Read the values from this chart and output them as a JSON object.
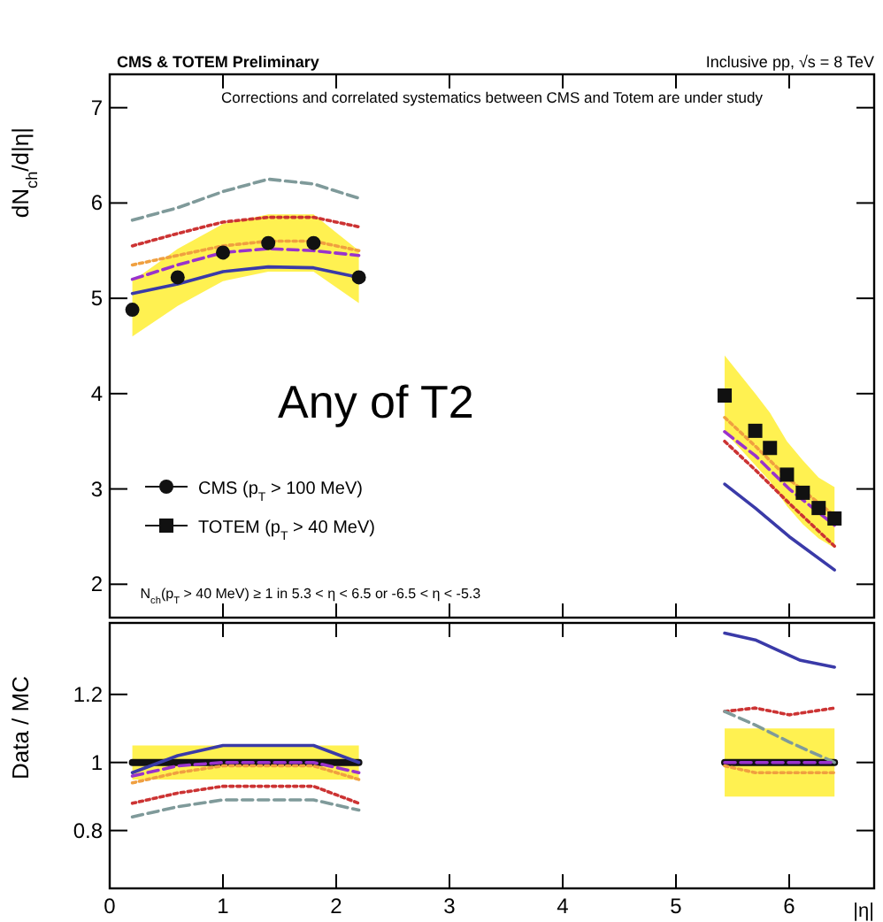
{
  "chart_data": [
    {
      "type": "line",
      "title": "CMS & TOTEM Preliminary",
      "subtitle": "Inclusive pp, √s = 8 TeV",
      "ylabel": "dN$_{ch}$/d|η|",
      "annotations": [
        "Corrections and correlated systematics between CMS and Totem are under study",
        "N$_{ch}$(p$_{T}$ > 40 MeV) ≥ 1 in 5.3 < η < 6.5 or -6.5 < η < -5.3",
        "Any of T2"
      ],
      "xlim": [
        0,
        6.75
      ],
      "ylim": [
        1.65,
        7.35
      ],
      "xticks": [
        0,
        1,
        2,
        3,
        4,
        5,
        6
      ],
      "yticks": [
        2,
        3,
        4,
        5,
        6,
        7
      ],
      "tick_labels": "y",
      "legend": "bottom left",
      "series": [
        {
          "color": "#3a3aa8",
          "line_style": "solid",
          "x": [
            0.2,
            0.6,
            1.0,
            1.4,
            1.8,
            2.2
          ],
          "values": [
            5.05,
            5.15,
            5.28,
            5.33,
            5.32,
            5.22
          ]
        },
        {
          "color": "#3a3aa8",
          "line_style": "solid",
          "x": [
            5.43,
            5.7,
            6.0,
            6.4
          ],
          "values": [
            3.05,
            2.8,
            2.5,
            2.15
          ]
        },
        {
          "color": "#cc3333",
          "line_style": "dotted",
          "x": [
            0.2,
            0.6,
            1.0,
            1.4,
            1.8,
            2.2
          ],
          "values": [
            5.55,
            5.68,
            5.8,
            5.85,
            5.85,
            5.75
          ]
        },
        {
          "color": "#cc3333",
          "line_style": "dotted",
          "x": [
            5.43,
            5.7,
            6.0,
            6.4
          ],
          "values": [
            3.5,
            3.2,
            2.85,
            2.4
          ]
        },
        {
          "color": "#7f9a9a",
          "line_style": "dashed",
          "x": [
            0.2,
            0.6,
            1.0,
            1.4,
            1.8,
            2.2
          ],
          "values": [
            5.82,
            5.95,
            6.12,
            6.25,
            6.2,
            6.05
          ]
        },
        {
          "color": "#f0a040",
          "line_style": "dotted",
          "x": [
            0.2,
            0.6,
            1.0,
            1.4,
            1.8,
            2.2
          ],
          "values": [
            5.35,
            5.45,
            5.55,
            5.6,
            5.6,
            5.5
          ]
        },
        {
          "color": "#f0a040",
          "line_style": "dotted",
          "x": [
            5.43,
            5.7,
            6.0,
            6.4
          ],
          "values": [
            3.75,
            3.45,
            3.1,
            2.72
          ]
        },
        {
          "color": "#9933cc",
          "line_style": "dashed",
          "x": [
            0.2,
            0.6,
            1.0,
            1.4,
            1.8,
            2.2
          ],
          "values": [
            5.2,
            5.35,
            5.48,
            5.52,
            5.5,
            5.45
          ]
        },
        {
          "color": "#9933cc",
          "line_style": "dashed",
          "x": [
            5.43,
            5.7,
            6.0,
            6.4
          ],
          "values": [
            3.6,
            3.35,
            3.0,
            2.62
          ]
        },
        {
          "type": "scatter",
          "name": "CMS (p$_{T}$ > 100 MeV)",
          "color": "#111111",
          "marker": "circle",
          "x": [
            0.2,
            0.6,
            1.0,
            1.4,
            1.8,
            2.2
          ],
          "values": [
            4.88,
            5.22,
            5.48,
            5.58,
            5.58,
            5.22
          ],
          "lower": [
            4.6,
            4.92,
            5.18,
            5.28,
            5.28,
            4.95
          ],
          "upper": [
            5.18,
            5.52,
            5.78,
            5.88,
            5.88,
            5.5
          ]
        },
        {
          "type": "scatter",
          "name": "TOTEM (p$_{T}$ > 40 MeV)",
          "color": "#111111",
          "marker": "square",
          "x": [
            5.43,
            5.7,
            5.83,
            5.98,
            6.12,
            6.26,
            6.4
          ],
          "values": [
            3.98,
            3.61,
            3.43,
            3.15,
            2.96,
            2.8,
            2.69
          ],
          "lower": [
            3.6,
            3.25,
            3.08,
            2.82,
            2.63,
            2.48,
            2.38
          ],
          "upper": [
            4.4,
            4.0,
            3.8,
            3.5,
            3.3,
            3.12,
            3.02
          ]
        }
      ]
    },
    {
      "type": "line",
      "xlabel": "|η|",
      "ylabel": "Data / MC",
      "xlim": [
        0,
        6.75
      ],
      "ylim": [
        0.63,
        1.41
      ],
      "xticks": [
        0,
        1,
        2,
        3,
        4,
        5,
        6
      ],
      "yticks": [
        0.8,
        1,
        1.2
      ],
      "series": [
        {
          "color": "#111111",
          "line_style": "solid",
          "x": [
            0.2,
            2.2
          ],
          "values": [
            1,
            1
          ],
          "lower": [
            0.95,
            0.95
          ],
          "upper": [
            1.05,
            1.05
          ]
        },
        {
          "color": "#111111",
          "line_style": "solid",
          "x": [
            5.43,
            6.4
          ],
          "values": [
            1,
            1
          ],
          "lower": [
            0.9,
            0.9
          ],
          "upper": [
            1.1,
            1.1
          ]
        },
        {
          "color": "#3a3aa8",
          "line_style": "solid",
          "x": [
            0.2,
            0.6,
            1.0,
            1.8,
            2.2
          ],
          "values": [
            0.97,
            1.02,
            1.05,
            1.05,
            1.0
          ]
        },
        {
          "color": "#3a3aa8",
          "line_style": "solid",
          "x": [
            5.43,
            5.7,
            5.9,
            6.1,
            6.4
          ],
          "values": [
            1.38,
            1.36,
            1.33,
            1.3,
            1.28
          ]
        },
        {
          "color": "#cc3333",
          "line_style": "dotted",
          "x": [
            0.2,
            0.6,
            1.0,
            1.4,
            1.8,
            2.2
          ],
          "values": [
            0.88,
            0.91,
            0.93,
            0.93,
            0.93,
            0.88
          ]
        },
        {
          "color": "#cc3333",
          "line_style": "dotted",
          "x": [
            5.43,
            5.7,
            6.0,
            6.4
          ],
          "values": [
            1.15,
            1.16,
            1.14,
            1.16
          ]
        },
        {
          "color": "#7f9a9a",
          "line_style": "dashed",
          "x": [
            0.2,
            0.6,
            1.0,
            1.4,
            1.8,
            2.2
          ],
          "values": [
            0.84,
            0.87,
            0.89,
            0.89,
            0.89,
            0.86
          ]
        },
        {
          "color": "#7f9a9a",
          "line_style": "dashed",
          "x": [
            5.43,
            5.7,
            6.0,
            6.4
          ],
          "values": [
            1.15,
            1.11,
            1.06,
            1.0
          ]
        },
        {
          "color": "#f0a040",
          "line_style": "dotted",
          "x": [
            0.2,
            0.6,
            1.0,
            1.4,
            1.8,
            2.2
          ],
          "values": [
            0.94,
            0.97,
            0.99,
            0.99,
            0.99,
            0.95
          ]
        },
        {
          "color": "#f0a040",
          "line_style": "dotted",
          "x": [
            5.43,
            5.7,
            6.0,
            6.4
          ],
          "values": [
            0.99,
            0.97,
            0.97,
            0.97
          ]
        },
        {
          "color": "#9933cc",
          "line_style": "dashed",
          "x": [
            0.2,
            0.6,
            1.0,
            1.4,
            1.8,
            2.2
          ],
          "values": [
            0.96,
            0.99,
            1.0,
            1.0,
            1.0,
            0.97
          ]
        },
        {
          "color": "#9933cc",
          "line_style": "dashed",
          "x": [
            5.43,
            5.7,
            6.0,
            6.4
          ],
          "values": [
            1.0,
            1.0,
            1.0,
            1.0
          ]
        }
      ]
    }
  ]
}
